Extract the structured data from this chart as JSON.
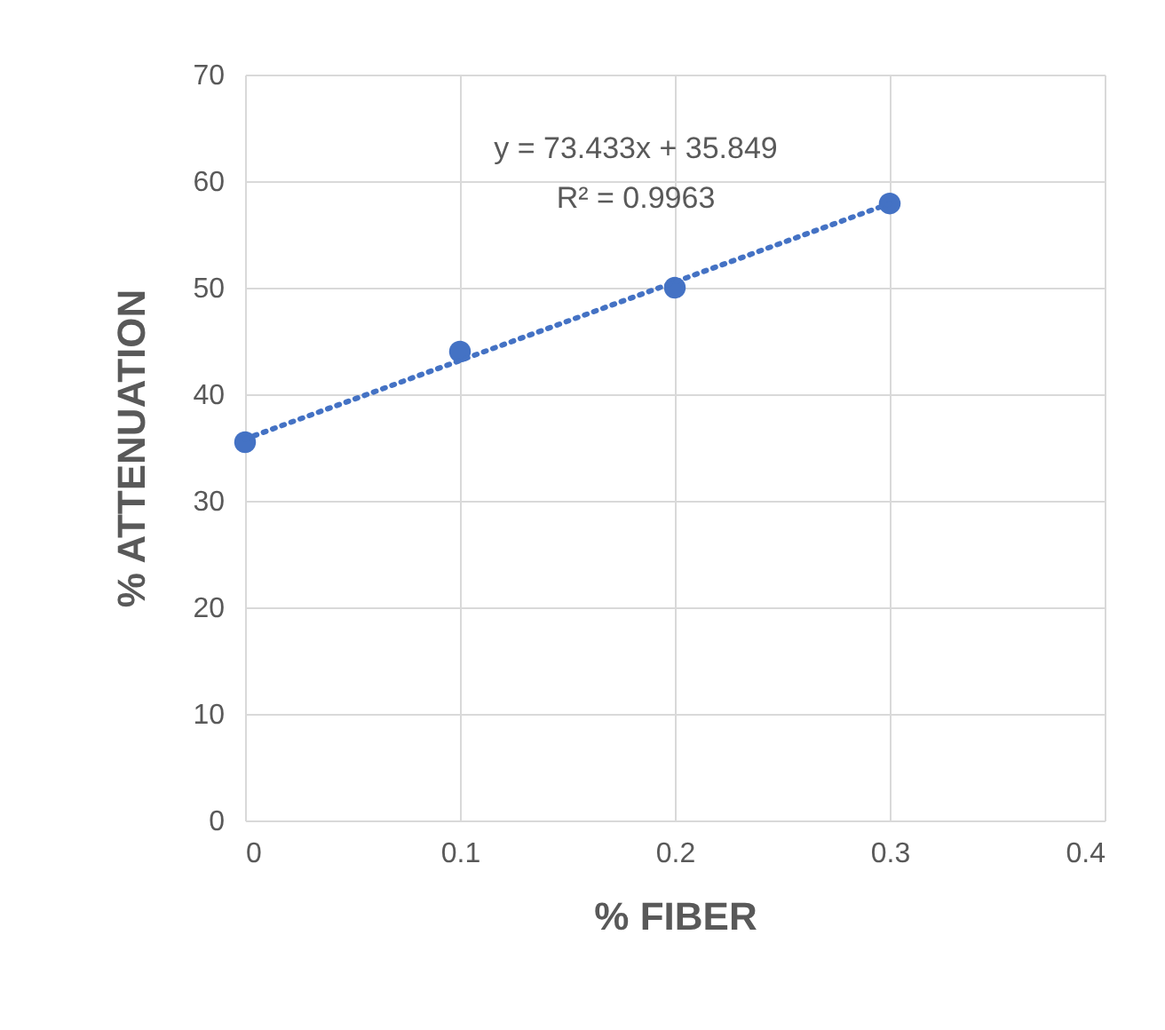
{
  "chart_data": {
    "type": "scatter",
    "xlabel": "% FIBER",
    "ylabel": "% ATTENUATION",
    "x": [
      0,
      0.1,
      0.2,
      0.3
    ],
    "series": [
      {
        "type": "scatter",
        "color": "#4472c4",
        "values": [
          35.5,
          44.0,
          50.0,
          57.9
        ],
        "marker": "circle"
      },
      {
        "type": "line",
        "color": "#4472c4",
        "x": [
          0,
          0.3
        ],
        "values": [
          35.8,
          57.9
        ],
        "line_style": "dotted",
        "marker": "none"
      }
    ],
    "annotations": [
      "y = 73.433x + 35.849",
      "R² = 0.9963"
    ],
    "xlim": [
      0,
      0.4
    ],
    "xticks": [
      0,
      0.1,
      0.2,
      0.3,
      0.4
    ],
    "ylim": [
      0,
      70
    ],
    "yticks": [
      0,
      10,
      20,
      30,
      40,
      50,
      60,
      70
    ],
    "grid": true
  }
}
